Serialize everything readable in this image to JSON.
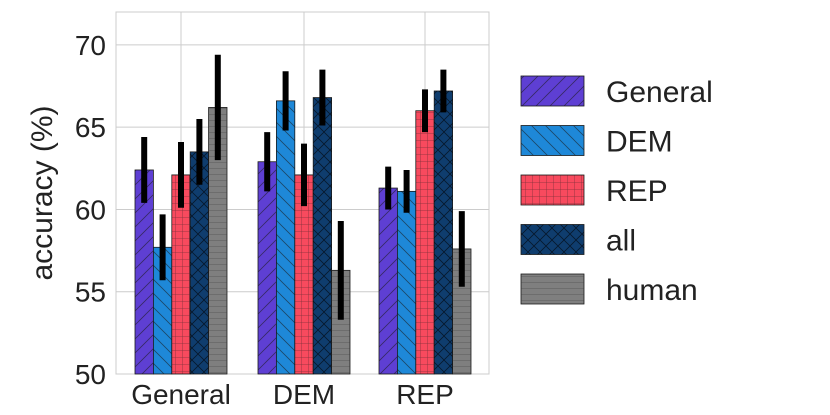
{
  "chart_data": {
    "type": "bar",
    "ylabel": "accuracy (%)",
    "ylim": [
      50,
      72
    ],
    "yticks": [
      50,
      55,
      60,
      65,
      70
    ],
    "grid": true,
    "legend_position": "right",
    "categories": [
      "General",
      "DEM",
      "REP"
    ],
    "series": [
      {
        "name": "General",
        "color": "#5e3fd3",
        "hatch": "diagonal",
        "values": [
          62.4,
          62.9,
          61.3
        ],
        "errors": [
          2.0,
          1.8,
          1.3
        ]
      },
      {
        "name": "DEM",
        "color": "#1e88d8",
        "hatch": "back-diagonal",
        "values": [
          57.7,
          66.6,
          61.1
        ],
        "errors": [
          2.0,
          1.8,
          1.3
        ]
      },
      {
        "name": "REP",
        "color": "#f84a5e",
        "hatch": "grid",
        "values": [
          62.1,
          62.1,
          66.0
        ],
        "errors": [
          2.0,
          1.9,
          1.3
        ]
      },
      {
        "name": "all",
        "color": "#0f3d6e",
        "hatch": "crosshatch",
        "values": [
          63.5,
          66.8,
          67.2
        ],
        "errors": [
          2.0,
          1.7,
          1.3
        ]
      },
      {
        "name": "human",
        "color": "#7f7f7f",
        "hatch": "horizontal",
        "values": [
          66.2,
          56.3,
          57.6
        ],
        "errors": [
          3.2,
          3.0,
          2.3
        ]
      }
    ]
  }
}
